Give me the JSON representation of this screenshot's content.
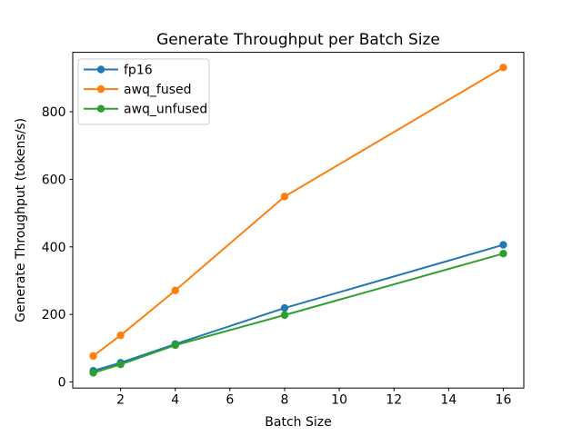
{
  "figure": {
    "background": "#ffffff",
    "text_color": "#000000",
    "spine_color": "#000000",
    "legend_border_color": "#cccccc"
  },
  "chart_data": {
    "type": "line",
    "title": "Generate Throughput per Batch Size",
    "xlabel": "Batch Size",
    "ylabel": "Generate Throughput (tokens/s)",
    "x": [
      1,
      2,
      4,
      8,
      16
    ],
    "series": [
      {
        "name": "fp16",
        "color": "#1f77b4",
        "values": [
          33,
          57,
          112,
          219,
          406
        ]
      },
      {
        "name": "awq_fused",
        "color": "#ff7f0e",
        "values": [
          77,
          138,
          271,
          549,
          931
        ]
      },
      {
        "name": "awq_unfused",
        "color": "#2ca02c",
        "values": [
          27,
          52,
          109,
          198,
          380
        ]
      }
    ],
    "xticks": [
      2,
      4,
      6,
      8,
      10,
      12,
      14,
      16
    ],
    "yticks": [
      0,
      200,
      400,
      600,
      800
    ],
    "xlim": [
      0.25,
      16.75
    ],
    "ylim": [
      -18,
      976
    ],
    "grid": false,
    "marker": "circle",
    "legend_position": "upper left"
  }
}
